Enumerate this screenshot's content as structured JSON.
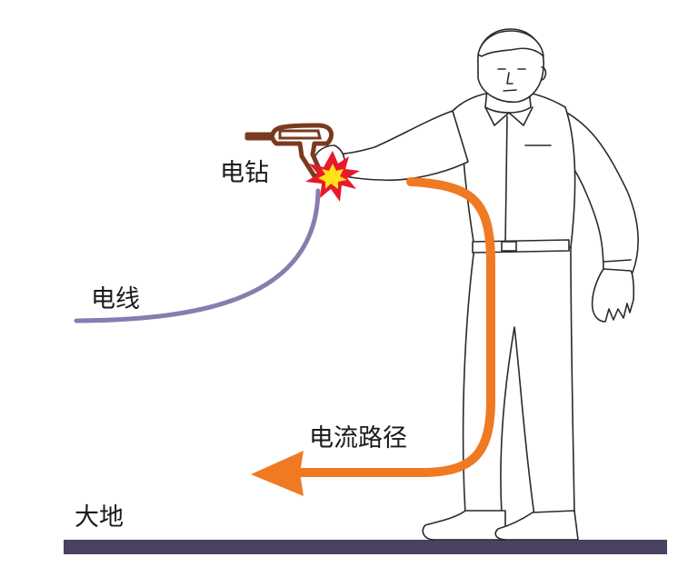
{
  "labels": {
    "drill": "电钻",
    "wire": "电线",
    "current_path": "电流路径",
    "ground": "大地"
  },
  "icons": {
    "person": "person-icon",
    "drill": "drill-icon",
    "spark": "spark-icon",
    "arrow": "arrow-icon"
  },
  "colors": {
    "wire": "#8a7bb0",
    "current": "#f07a22",
    "ground": "#4a4260",
    "drill": "#7a3a20",
    "spark_outer": "#e8192c",
    "spark_inner": "#ffe21a",
    "outline": "#2a2a2a"
  }
}
